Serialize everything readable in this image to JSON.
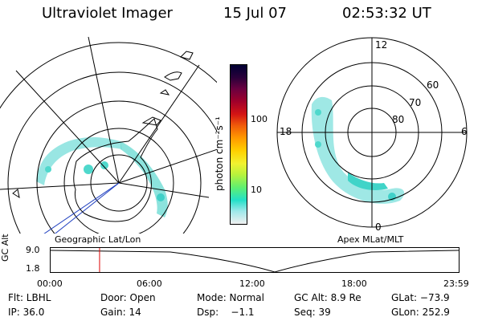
{
  "header": {
    "title": "Ultraviolet Imager",
    "date": "15 Jul 07",
    "time": "02:53:32 UT"
  },
  "left_map": {
    "caption": "Geographic Lat/Lon"
  },
  "right_map": {
    "caption": "Apex MLat/MLT",
    "mlt_labels": {
      "top": "12",
      "left": "18",
      "right": "6",
      "bottom": "0"
    },
    "lat_labels": [
      "60",
      "70",
      "80"
    ]
  },
  "colorbar": {
    "unit_label": "photon cm⁻²s⁻¹",
    "ticks": [
      "100",
      "10"
    ],
    "colors": [
      "#000033",
      "#2a003a",
      "#6a0040",
      "#a0002a",
      "#d41414",
      "#f05a0a",
      "#ff9a00",
      "#ffd000",
      "#f2f230",
      "#b8f23c",
      "#60f070",
      "#22e0c8",
      "#9ee8ea",
      "#f0f0f0"
    ]
  },
  "timeline": {
    "y_label": "GC Alt",
    "y_ticks": [
      "9.0",
      "1.8"
    ],
    "x_ticks": [
      "00:00",
      "06:00",
      "12:00",
      "18:00",
      "23:59"
    ],
    "current_time_fraction": 0.12,
    "marker_color": "#dd0000"
  },
  "info": {
    "row1": {
      "flt": "Flt: LBHL",
      "door": "Door: Open",
      "mode": "Mode: Normal",
      "gcalt": "GC Alt: 8.9 Re",
      "glat": "GLat: −73.9"
    },
    "row2": {
      "ip": "IP: 36.0",
      "gain": "Gain: 14",
      "dsp": "Dsp:    −1.1",
      "seq": "Seq: 39",
      "glon": "GLon: 252.9"
    }
  }
}
